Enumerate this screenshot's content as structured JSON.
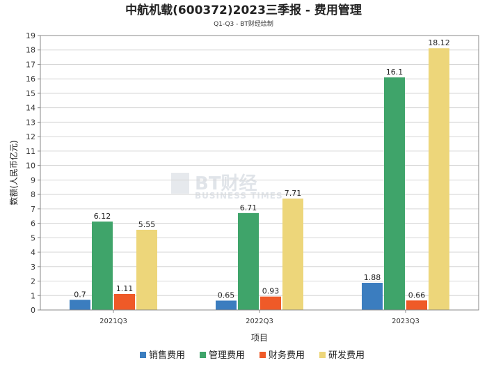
{
  "chart_data": {
    "type": "bar",
    "title": "中航机载(600372)2023三季报 - 费用管理",
    "subtitle": "Q1-Q3 - BT财经绘制",
    "xlabel": "项目",
    "ylabel": "数额(人民币亿元)",
    "ylim": [
      0,
      19
    ],
    "yticks": [
      0,
      1,
      2,
      3,
      4,
      5,
      6,
      7,
      8,
      9,
      10,
      11,
      12,
      13,
      14,
      15,
      16,
      17,
      18,
      19
    ],
    "grid": true,
    "legend_position": "bottom",
    "categories": [
      "2021Q3",
      "2022Q3",
      "2023Q3"
    ],
    "series": [
      {
        "name": "销售费用",
        "color": "#3b7dbf",
        "values": [
          0.7,
          0.65,
          1.88
        ],
        "labels": [
          "0.7",
          "0.65",
          "1.88"
        ]
      },
      {
        "name": "管理费用",
        "color": "#3fa46a",
        "values": [
          6.12,
          6.71,
          16.1
        ],
        "labels": [
          "6.12",
          "6.71",
          "16.1"
        ]
      },
      {
        "name": "财务费用",
        "color": "#ef5a28",
        "values": [
          1.11,
          0.93,
          0.66
        ],
        "labels": [
          "1.11",
          "0.93",
          "0.66"
        ]
      },
      {
        "name": "研发费用",
        "color": "#edd67a",
        "values": [
          5.55,
          7.71,
          18.12
        ],
        "labels": [
          "5.55",
          "7.71",
          "18.12"
        ]
      }
    ]
  },
  "watermark": {
    "brand": "BT财经",
    "sub": "BUSINESS TIMES"
  }
}
